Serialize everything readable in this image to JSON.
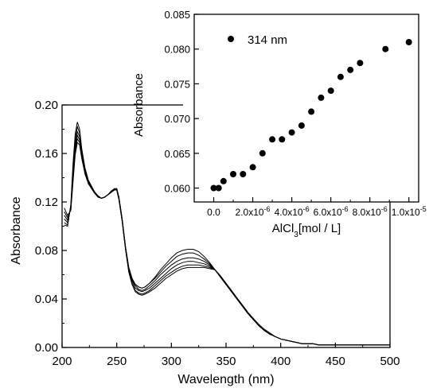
{
  "chart_data": [
    {
      "type": "line",
      "xlabel": "Wavelength (nm)",
      "ylabel": "Absorbance",
      "xlim": [
        200,
        500
      ],
      "ylim": [
        0,
        0.2
      ],
      "x_ticks": [
        "200",
        "250",
        "300",
        "350",
        "400",
        "450",
        "500"
      ],
      "y_ticks": [
        "0.00",
        "0.04",
        "0.08",
        "0.12",
        "0.16",
        "0.20"
      ],
      "grid": false,
      "x": [
        202,
        205,
        208,
        210,
        212,
        214,
        216,
        218,
        221,
        224,
        227,
        230,
        233,
        236,
        239,
        242,
        245,
        248,
        250,
        252,
        255,
        258,
        261,
        264,
        267,
        270,
        273,
        276,
        280,
        285,
        290,
        295,
        300,
        305,
        310,
        315,
        320,
        325,
        330,
        335,
        340,
        345,
        350,
        355,
        360,
        365,
        370,
        375,
        380,
        385,
        390,
        395,
        400,
        405,
        410,
        415,
        420,
        425,
        430,
        435,
        440,
        445,
        450,
        455,
        460,
        465,
        470,
        475,
        480,
        485,
        490,
        495,
        500
      ],
      "series": [
        {
          "values": [
            0.101,
            0.1,
            0.118,
            0.151,
            0.176,
            0.186,
            0.18,
            0.164,
            0.148,
            0.138,
            0.133,
            0.128,
            0.125,
            0.123,
            0.124,
            0.126,
            0.129,
            0.131,
            0.131,
            0.124,
            0.106,
            0.083,
            0.066,
            0.057,
            0.052,
            0.05,
            0.049,
            0.05,
            0.053,
            0.058,
            0.064,
            0.069,
            0.074,
            0.078,
            0.08,
            0.081,
            0.081,
            0.079,
            0.075,
            0.07,
            0.064,
            0.058,
            0.052,
            0.046,
            0.04,
            0.034,
            0.028,
            0.023,
            0.018,
            0.014,
            0.011,
            0.009,
            0.007,
            0.006,
            0.005,
            0.004,
            0.003,
            0.003,
            0.003,
            0.002,
            0.002,
            0.002,
            0.002,
            0.002,
            0.002,
            0.002,
            0.002,
            0.002,
            0.002,
            0.002,
            0.002,
            0.002,
            0.002
          ]
        },
        {
          "values": [
            0.103,
            0.101,
            0.117,
            0.148,
            0.172,
            0.182,
            0.177,
            0.162,
            0.147,
            0.137,
            0.132,
            0.128,
            0.125,
            0.123,
            0.124,
            0.126,
            0.129,
            0.131,
            0.131,
            0.124,
            0.106,
            0.083,
            0.066,
            0.057,
            0.052,
            0.05,
            0.049,
            0.05,
            0.053,
            0.057,
            0.062,
            0.067,
            0.071,
            0.075,
            0.077,
            0.078,
            0.078,
            0.076,
            0.073,
            0.069,
            0.064,
            0.058,
            0.052,
            0.046,
            0.04,
            0.034,
            0.028,
            0.023,
            0.018,
            0.014,
            0.011,
            0.009,
            0.007,
            0.006,
            0.005,
            0.004,
            0.003,
            0.003,
            0.003,
            0.002,
            0.002,
            0.002,
            0.002,
            0.002,
            0.002,
            0.002,
            0.002,
            0.002,
            0.002,
            0.002,
            0.002,
            0.002,
            0.002
          ]
        },
        {
          "values": [
            0.106,
            0.103,
            0.116,
            0.145,
            0.168,
            0.178,
            0.174,
            0.16,
            0.146,
            0.137,
            0.132,
            0.128,
            0.125,
            0.123,
            0.124,
            0.126,
            0.129,
            0.13,
            0.13,
            0.123,
            0.105,
            0.082,
            0.065,
            0.056,
            0.051,
            0.048,
            0.047,
            0.048,
            0.051,
            0.055,
            0.06,
            0.064,
            0.068,
            0.071,
            0.073,
            0.074,
            0.074,
            0.073,
            0.071,
            0.068,
            0.064,
            0.058,
            0.052,
            0.046,
            0.04,
            0.034,
            0.028,
            0.023,
            0.018,
            0.014,
            0.011,
            0.009,
            0.007,
            0.006,
            0.005,
            0.004,
            0.003,
            0.003,
            0.003,
            0.002,
            0.002,
            0.002,
            0.002,
            0.002,
            0.002,
            0.002,
            0.002,
            0.002,
            0.002,
            0.002,
            0.002,
            0.002,
            0.002
          ]
        },
        {
          "values": [
            0.109,
            0.105,
            0.115,
            0.142,
            0.165,
            0.175,
            0.171,
            0.158,
            0.145,
            0.136,
            0.131,
            0.127,
            0.124,
            0.123,
            0.124,
            0.126,
            0.128,
            0.13,
            0.13,
            0.123,
            0.105,
            0.082,
            0.064,
            0.055,
            0.049,
            0.047,
            0.046,
            0.047,
            0.049,
            0.053,
            0.057,
            0.061,
            0.065,
            0.068,
            0.07,
            0.071,
            0.071,
            0.07,
            0.069,
            0.067,
            0.064,
            0.058,
            0.052,
            0.046,
            0.04,
            0.034,
            0.028,
            0.023,
            0.018,
            0.014,
            0.011,
            0.009,
            0.007,
            0.006,
            0.005,
            0.004,
            0.003,
            0.003,
            0.003,
            0.002,
            0.002,
            0.002,
            0.002,
            0.002,
            0.002,
            0.002,
            0.002,
            0.002,
            0.002,
            0.002,
            0.002,
            0.002,
            0.002
          ]
        },
        {
          "values": [
            0.112,
            0.107,
            0.114,
            0.139,
            0.162,
            0.172,
            0.169,
            0.157,
            0.144,
            0.136,
            0.131,
            0.127,
            0.124,
            0.123,
            0.124,
            0.126,
            0.128,
            0.13,
            0.13,
            0.122,
            0.104,
            0.081,
            0.063,
            0.053,
            0.047,
            0.045,
            0.044,
            0.045,
            0.047,
            0.051,
            0.055,
            0.059,
            0.062,
            0.065,
            0.067,
            0.068,
            0.068,
            0.068,
            0.067,
            0.066,
            0.064,
            0.058,
            0.052,
            0.046,
            0.04,
            0.034,
            0.028,
            0.023,
            0.018,
            0.014,
            0.011,
            0.009,
            0.007,
            0.006,
            0.005,
            0.004,
            0.003,
            0.003,
            0.003,
            0.002,
            0.002,
            0.002,
            0.002,
            0.002,
            0.002,
            0.002,
            0.002,
            0.002,
            0.002,
            0.002,
            0.002,
            0.002,
            0.002
          ]
        },
        {
          "values": [
            0.115,
            0.109,
            0.113,
            0.136,
            0.159,
            0.169,
            0.167,
            0.156,
            0.143,
            0.135,
            0.131,
            0.127,
            0.124,
            0.123,
            0.124,
            0.126,
            0.128,
            0.13,
            0.13,
            0.122,
            0.104,
            0.081,
            0.062,
            0.052,
            0.046,
            0.044,
            0.043,
            0.044,
            0.046,
            0.049,
            0.053,
            0.057,
            0.06,
            0.063,
            0.065,
            0.066,
            0.066,
            0.066,
            0.066,
            0.065,
            0.064,
            0.059,
            0.053,
            0.047,
            0.041,
            0.035,
            0.029,
            0.024,
            0.019,
            0.015,
            0.012,
            0.009,
            0.007,
            0.006,
            0.005,
            0.004,
            0.003,
            0.003,
            0.003,
            0.002,
            0.002,
            0.002,
            0.002,
            0.002,
            0.002,
            0.002,
            0.002,
            0.002,
            0.002,
            0.002,
            0.002,
            0.002,
            0.002
          ]
        }
      ]
    },
    {
      "type": "scatter",
      "xlabel": "AlCl3[mol / L]",
      "ylabel": "Absorbance",
      "xlim": [
        -1e-06,
        1.05e-05
      ],
      "ylim": [
        0.058,
        0.085
      ],
      "x_ticks": [
        "0.0",
        "2.0x10-6",
        "4.0x10-6",
        "6.0x10-6",
        "8.0x10-6",
        "1.0x10-5"
      ],
      "y_ticks": [
        "0.060",
        "0.065",
        "0.070",
        "0.075",
        "0.080",
        "0.085"
      ],
      "grid": false,
      "legend": {
        "label": "314 nm",
        "position": "top-left"
      },
      "x": [
        0,
        2.5e-07,
        5e-07,
        1e-06,
        1.5e-06,
        2e-06,
        2.5e-06,
        3e-06,
        3.5e-06,
        4e-06,
        4.5e-06,
        5e-06,
        5.5e-06,
        6e-06,
        6.5e-06,
        7e-06,
        7.5e-06,
        8.8e-06,
        1e-05
      ],
      "y": [
        0.06,
        0.06,
        0.061,
        0.062,
        0.062,
        0.063,
        0.065,
        0.067,
        0.067,
        0.068,
        0.069,
        0.071,
        0.073,
        0.074,
        0.076,
        0.077,
        0.078,
        0.08,
        0.081
      ]
    }
  ]
}
